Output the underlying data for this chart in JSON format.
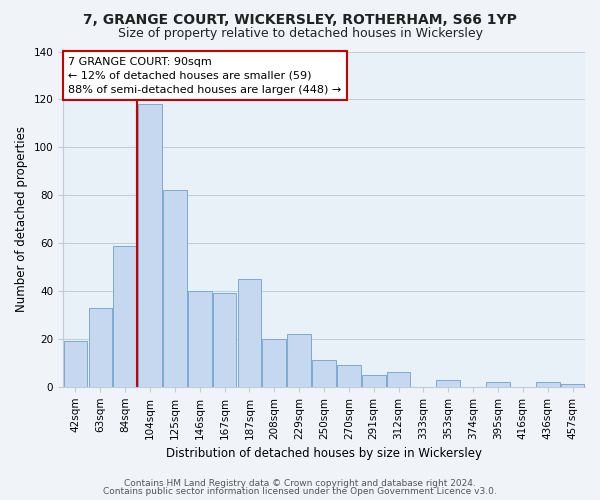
{
  "title": "7, GRANGE COURT, WICKERSLEY, ROTHERHAM, S66 1YP",
  "subtitle": "Size of property relative to detached houses in Wickersley",
  "xlabel": "Distribution of detached houses by size in Wickersley",
  "ylabel": "Number of detached properties",
  "bar_labels": [
    "42sqm",
    "63sqm",
    "84sqm",
    "104sqm",
    "125sqm",
    "146sqm",
    "167sqm",
    "187sqm",
    "208sqm",
    "229sqm",
    "250sqm",
    "270sqm",
    "291sqm",
    "312sqm",
    "333sqm",
    "353sqm",
    "374sqm",
    "395sqm",
    "416sqm",
    "436sqm",
    "457sqm"
  ],
  "bar_heights": [
    19,
    33,
    59,
    118,
    82,
    40,
    39,
    45,
    20,
    22,
    11,
    9,
    5,
    6,
    0,
    3,
    0,
    2,
    0,
    2,
    1
  ],
  "bar_color": "#c5d8f0",
  "bar_edgecolor": "#7aaad4",
  "vline_color": "#cc0000",
  "ylim": [
    0,
    140
  ],
  "annotation_line1": "7 GRANGE COURT: 90sqm",
  "annotation_line2": "← 12% of detached houses are smaller (59)",
  "annotation_line3": "88% of semi-detached houses are larger (448) →",
  "footer1": "Contains HM Land Registry data © Crown copyright and database right 2024.",
  "footer2": "Contains public sector information licensed under the Open Government Licence v3.0.",
  "background_color": "#f0f4f8",
  "plot_bg_color": "#e8f0f8",
  "grid_color": "#c0ccd8",
  "title_fontsize": 10,
  "subtitle_fontsize": 9,
  "axis_label_fontsize": 8.5,
  "tick_fontsize": 7.5,
  "footer_fontsize": 6.5
}
